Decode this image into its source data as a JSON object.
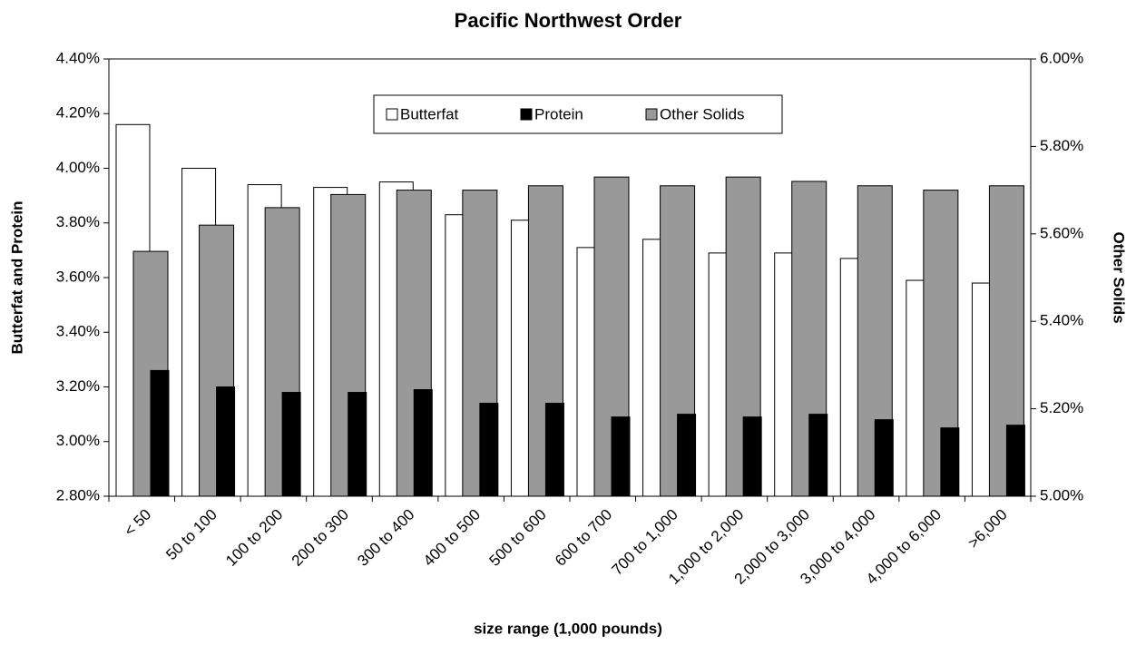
{
  "chart_data": {
    "type": "bar",
    "title": "Pacific Northwest Order",
    "x_label": "size range (1,000 pounds)",
    "y_label": "Butterfat and Protein",
    "y2_label": "Other Solids",
    "categories": [
      "< 50",
      "50 to 100",
      "100 to 200",
      "200 to 300",
      "300 to 400",
      "400 to 500",
      "500 to 600",
      "600 to 700",
      "700 to 1,000",
      "1,000 to 2,000",
      "2,000 to 3,000",
      "3,000 to 4,000",
      "4,000 to 6,000",
      ">6,000"
    ],
    "series": [
      {
        "name": "Butterfat",
        "color": "#ffffff",
        "values": [
          4.16,
          4.0,
          3.94,
          3.93,
          3.95,
          3.83,
          3.81,
          3.71,
          3.74,
          3.69,
          3.69,
          3.67,
          3.59,
          3.58
        ]
      },
      {
        "name": "Protein",
        "color": "#000000",
        "values": [
          3.26,
          3.2,
          3.18,
          3.18,
          3.19,
          3.14,
          3.14,
          3.09,
          3.1,
          3.09,
          3.1,
          3.08,
          3.05,
          3.06
        ]
      },
      {
        "name": "Other Solids",
        "color": "#999999",
        "axis": "y2",
        "values": [
          5.56,
          5.62,
          5.66,
          5.69,
          5.7,
          5.7,
          5.71,
          5.73,
          5.71,
          5.73,
          5.72,
          5.71,
          5.7,
          5.71
        ]
      }
    ],
    "ylim": [
      2.8,
      4.4
    ],
    "yticks": [
      {
        "value": 2.8,
        "label": "2.80%"
      },
      {
        "value": 3.0,
        "label": "3.00%"
      },
      {
        "value": 3.2,
        "label": "3.20%"
      },
      {
        "value": 3.4,
        "label": "3.40%"
      },
      {
        "value": 3.6,
        "label": "3.60%"
      },
      {
        "value": 3.8,
        "label": "3.80%"
      },
      {
        "value": 4.0,
        "label": "4.00%"
      },
      {
        "value": 4.2,
        "label": "4.20%"
      },
      {
        "value": 4.4,
        "label": "4.40%"
      }
    ],
    "y2lim": [
      5.0,
      6.0
    ],
    "y2ticks": [
      {
        "value": 5.0,
        "label": "5.00%"
      },
      {
        "value": 5.2,
        "label": "5.20%"
      },
      {
        "value": 5.4,
        "label": "5.40%"
      },
      {
        "value": 5.6,
        "label": "5.60%"
      },
      {
        "value": 5.8,
        "label": "5.80%"
      },
      {
        "value": 6.0,
        "label": "6.00%"
      }
    ],
    "legend": "top-center"
  }
}
